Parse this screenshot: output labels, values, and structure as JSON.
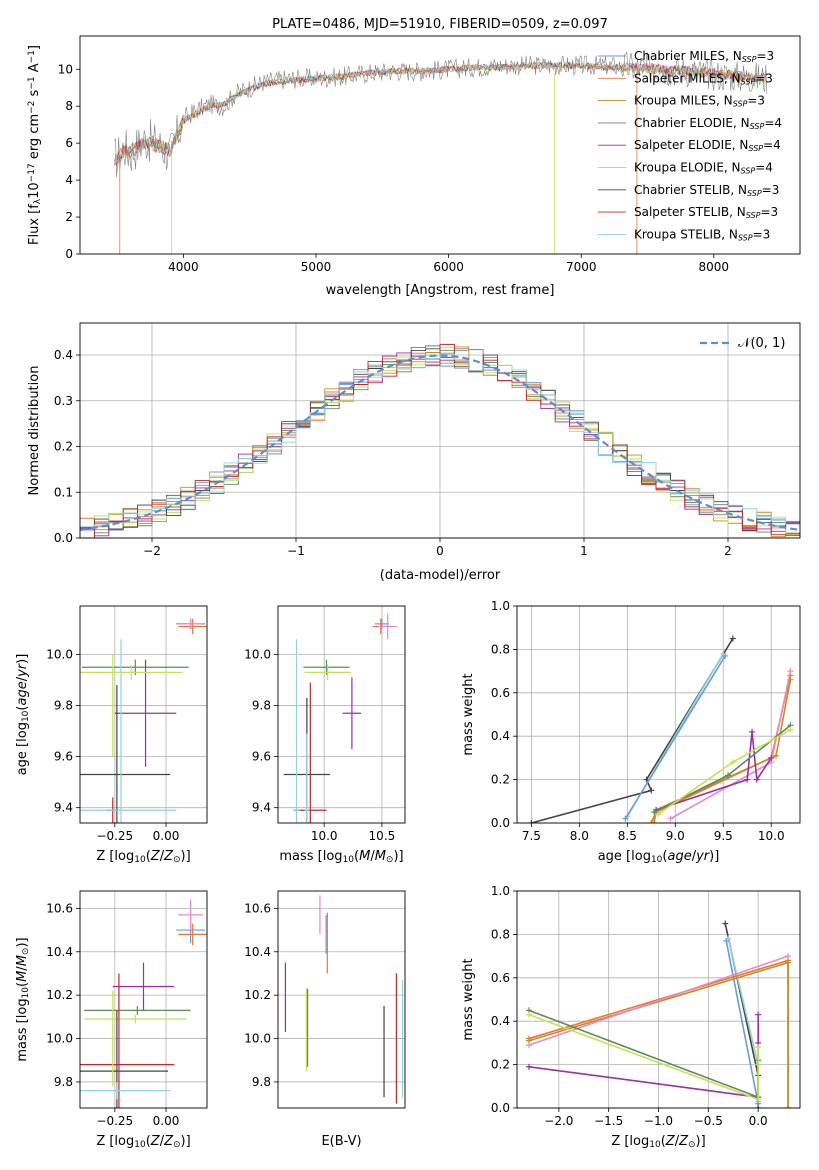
{
  "chart_data": [
    {
      "id": "spectrum",
      "type": "line",
      "title": "PLATE=0486, MJD=51910, FIBERID=0509, z=0.097",
      "xlabel": "wavelength [Angstrom, rest frame]",
      "ylabel": "Flux [f_λ 10^-17 erg cm^-2 s^-1 A^-1]",
      "xlim": [
        3220,
        8650
      ],
      "ylim": [
        0,
        11.8
      ],
      "xticks": [
        4000,
        5000,
        6000,
        7000,
        8000
      ],
      "yticks": [
        0,
        2,
        4,
        6,
        8,
        10
      ],
      "grid": false,
      "legend_position": "top-right",
      "data_color": "#808080",
      "x": [
        3500,
        3550,
        3600,
        3700,
        3800,
        3900,
        4000,
        4100,
        4200,
        4300,
        4400,
        4600,
        4800,
        5000,
        5200,
        5400,
        5600,
        5800,
        6000,
        6200,
        6400,
        6600,
        6800,
        7000,
        7200,
        7400,
        7600,
        7800,
        8000,
        8200,
        8400
      ],
      "data_flux": [
        5.2,
        5.8,
        5.4,
        6.2,
        6.0,
        5.4,
        7.3,
        7.8,
        8.1,
        8.0,
        8.7,
        9.3,
        9.5,
        9.5,
        9.6,
        9.8,
        9.9,
        9.9,
        10.0,
        10.1,
        10.2,
        10.2,
        10.2,
        10.2,
        10.2,
        10.1,
        10.0,
        9.9,
        9.7,
        9.6,
        9.5
      ],
      "model_flux": [
        5.1,
        5.6,
        5.5,
        6.0,
        5.9,
        5.6,
        7.2,
        7.6,
        8.0,
        8.1,
        8.6,
        9.2,
        9.4,
        9.5,
        9.6,
        9.8,
        9.9,
        9.9,
        10.0,
        10.1,
        10.1,
        10.2,
        10.2,
        10.2,
        10.1,
        10.1,
        10.0,
        9.9,
        9.8,
        9.6,
        9.5
      ],
      "series": [
        {
          "label": "Chabrier MILES, N",
          "sub": "SSP",
          "eq": "=3",
          "color": "#6b9bd6"
        },
        {
          "label": "Salpeter MILES, N",
          "sub": "SSP",
          "eq": "=3",
          "color": "#e8773c"
        },
        {
          "label": "Kroupa MILES, N",
          "sub": "SSP",
          "eq": "=3",
          "color": "#c68c1e"
        },
        {
          "label": "Chabrier ELODIE, N",
          "sub": "SSP",
          "eq": "=4",
          "color": "#5c8c5c"
        },
        {
          "label": "Salpeter ELODIE, N",
          "sub": "SSP",
          "eq": "=4",
          "color": "#9c2fa8"
        },
        {
          "label": "Kroupa ELODIE, N",
          "sub": "SSP",
          "eq": "=4",
          "color": "#c8df56"
        },
        {
          "label": "Chabrier STELIB, N",
          "sub": "SSP",
          "eq": "=3",
          "color": "#444444"
        },
        {
          "label": "Salpeter STELIB, N",
          "sub": "SSP",
          "eq": "=3",
          "color": "#c0282a"
        },
        {
          "label": "Kroupa STELIB, N",
          "sub": "SSP",
          "eq": "=3",
          "color": "#8fd4dc"
        }
      ]
    },
    {
      "id": "residual_hist",
      "type": "line",
      "xlabel": "(data-model)/error",
      "ylabel": "Normed distribution",
      "xlim": [
        -2.5,
        2.5
      ],
      "ylim": [
        0,
        0.47
      ],
      "xticks": [
        -2,
        -1,
        0,
        1,
        2
      ],
      "yticks": [
        0.0,
        0.1,
        0.2,
        0.3,
        0.4
      ],
      "grid": true,
      "legend_position": "top-right",
      "legend_label": "𝒩(0, 1)",
      "gaussian": {
        "mean": 0,
        "sigma": 1
      }
    },
    {
      "id": "age_vs_Z",
      "type": "scatter",
      "xlabel": "Z [log10(Z/Z⊙)]",
      "ylabel": "age [log10(age/yr)]",
      "xlim": [
        -0.42,
        0.2
      ],
      "ylim": [
        9.34,
        10.19
      ],
      "xticks": [
        -0.25,
        0.0
      ],
      "yticks": [
        9.4,
        9.6,
        9.8,
        10.0
      ],
      "grid": true,
      "points": [
        {
          "x": 0.12,
          "y": 10.12,
          "xerr": 0.07,
          "yerr": 0.02,
          "color": "#6b9bd6"
        },
        {
          "x": 0.13,
          "y": 10.11,
          "xerr": 0.07,
          "yerr": 0.03,
          "color": "#e8773c"
        },
        {
          "x": 0.12,
          "y": 10.12,
          "xerr": 0.06,
          "yerr": 0.02,
          "color": "#ea88c6"
        },
        {
          "x": -0.15,
          "y": 9.95,
          "xerr": 0.26,
          "yerr": 0.03,
          "color": "#5c8c5c"
        },
        {
          "x": -0.1,
          "y": 9.77,
          "xerr": 0.15,
          "yerr": 0.21,
          "color": "#9c2fa8"
        },
        {
          "x": -0.17,
          "y": 9.93,
          "xerr": 0.25,
          "yerr": 0.03,
          "color": "#c8df56"
        },
        {
          "x": -0.24,
          "y": 9.53,
          "xerr": 0.26,
          "yerr": 0.35,
          "color": "#444444"
        },
        {
          "x": -0.26,
          "y": 9.39,
          "xerr": 0.03,
          "yerr": 0.05,
          "color": "#c0282a"
        },
        {
          "x": -0.22,
          "y": 9.39,
          "xerr": 0.27,
          "yerr": 0.67,
          "color": "#8fd4dc"
        },
        {
          "x": -0.26,
          "y": 9.8,
          "xerr": 0.01,
          "yerr": 0.2,
          "color": "#c8df56"
        }
      ]
    },
    {
      "id": "age_vs_mass",
      "type": "scatter",
      "xlabel": "mass [log10(M/M⊙)]",
      "xlim": [
        9.6,
        10.7
      ],
      "ylim": [
        9.34,
        10.19
      ],
      "xticks": [
        10.0,
        10.5
      ],
      "yticks": [
        9.4,
        9.6,
        9.8,
        10.0
      ],
      "grid": true,
      "points": [
        {
          "x": 10.5,
          "y": 10.12,
          "xerr": 0.06,
          "yerr": 0.02,
          "color": "#6b9bd6"
        },
        {
          "x": 10.49,
          "y": 10.11,
          "xerr": 0.07,
          "yerr": 0.03,
          "color": "#e8773c"
        },
        {
          "x": 10.55,
          "y": 10.11,
          "xerr": 0.08,
          "yerr": 0.05,
          "color": "#ea88c6"
        },
        {
          "x": 10.02,
          "y": 9.95,
          "xerr": 0.2,
          "yerr": 0.03,
          "color": "#5c8c5c"
        },
        {
          "x": 10.24,
          "y": 9.77,
          "xerr": 0.08,
          "yerr": 0.14,
          "color": "#9c2fa8"
        },
        {
          "x": 10.03,
          "y": 9.93,
          "xerr": 0.2,
          "yerr": 0.03,
          "color": "#c8df56"
        },
        {
          "x": 9.85,
          "y": 9.53,
          "xerr": 0.2,
          "yerr": 0.3,
          "color": "#444444"
        },
        {
          "x": 9.88,
          "y": 9.39,
          "xerr": 0.14,
          "yerr": 0.5,
          "color": "#c0282a"
        },
        {
          "x": 9.76,
          "y": 9.39,
          "xerr": 0.03,
          "yerr": 0.67,
          "color": "#8fd4dc"
        },
        {
          "x": 9.85,
          "y": 9.39,
          "xerr": 0.02,
          "yerr": 0.3,
          "color": "#8fd4dc"
        }
      ]
    },
    {
      "id": "mass_weight_vs_age",
      "type": "line",
      "xlabel": "age [log10(age/yr)]",
      "ylabel": "mass weight",
      "xlim": [
        7.35,
        10.3
      ],
      "ylim": [
        0,
        1.0
      ],
      "xticks": [
        7.5,
        8.0,
        8.5,
        9.0,
        9.5,
        10.0
      ],
      "yticks": [
        0.0,
        0.2,
        0.4,
        0.6,
        0.8,
        1.0
      ],
      "grid": true,
      "series": [
        {
          "color": "#444444",
          "x": [
            7.5,
            8.75,
            8.7,
            9.6
          ],
          "y": [
            0.0,
            0.15,
            0.2,
            0.85
          ]
        },
        {
          "color": "#8fd4dc",
          "x": [
            8.5,
            9.5
          ],
          "y": [
            0.03,
            0.78
          ]
        },
        {
          "color": "#6b9bd6",
          "x": [
            8.48,
            9.52
          ],
          "y": [
            0.02,
            0.77
          ]
        },
        {
          "color": "#e8773c",
          "x": [
            8.75,
            8.8,
            10.0,
            10.2
          ],
          "y": [
            0.0,
            0.05,
            0.3,
            0.68
          ]
        },
        {
          "color": "#c68c1e",
          "x": [
            8.78,
            8.8,
            10.05,
            10.2
          ],
          "y": [
            0.0,
            0.06,
            0.31,
            0.66
          ]
        },
        {
          "color": "#ea88c6",
          "x": [
            8.95,
            10.0,
            10.2
          ],
          "y": [
            0.02,
            0.28,
            0.7
          ]
        },
        {
          "color": "#9c2fa8",
          "x": [
            8.8,
            9.75,
            9.8,
            9.85,
            10.0
          ],
          "y": [
            0.06,
            0.2,
            0.42,
            0.2,
            0.3
          ]
        },
        {
          "color": "#5c8c5c",
          "x": [
            8.78,
            9.55,
            10.2
          ],
          "y": [
            0.05,
            0.22,
            0.45
          ]
        },
        {
          "color": "#c8df56",
          "x": [
            8.82,
            9.6,
            10.2
          ],
          "y": [
            0.04,
            0.28,
            0.43
          ]
        }
      ]
    },
    {
      "id": "mass_vs_Z",
      "type": "scatter",
      "xlabel": "Z [log10(Z/Z⊙)]",
      "ylabel": "mass [log10(M/M⊙)]",
      "xlim": [
        -0.42,
        0.2
      ],
      "ylim": [
        9.68,
        10.68
      ],
      "xticks": [
        -0.25,
        0.0
      ],
      "yticks": [
        9.8,
        10.0,
        10.2,
        10.4,
        10.6
      ],
      "grid": true,
      "points": [
        {
          "x": 0.12,
          "y": 10.5,
          "xerr": 0.07,
          "yerr": 0.06,
          "color": "#6b9bd6"
        },
        {
          "x": 0.13,
          "y": 10.48,
          "xerr": 0.07,
          "yerr": 0.05,
          "color": "#e8773c"
        },
        {
          "x": 0.12,
          "y": 10.57,
          "xerr": 0.06,
          "yerr": 0.07,
          "color": "#ea88c6"
        },
        {
          "x": -0.14,
          "y": 10.13,
          "xerr": 0.26,
          "yerr": 0.02,
          "color": "#5c8c5c"
        },
        {
          "x": -0.11,
          "y": 10.24,
          "xerr": 0.15,
          "yerr": 0.11,
          "color": "#9c2fa8"
        },
        {
          "x": -0.15,
          "y": 10.09,
          "xerr": 0.25,
          "yerr": 0.02,
          "color": "#c8df56"
        },
        {
          "x": -0.24,
          "y": 9.85,
          "xerr": 0.25,
          "yerr": 0.28,
          "color": "#444444"
        },
        {
          "x": -0.23,
          "y": 9.88,
          "xerr": 0.27,
          "yerr": 0.42,
          "color": "#c0282a"
        },
        {
          "x": -0.24,
          "y": 9.76,
          "xerr": 0.26,
          "yerr": 0.04,
          "color": "#8fd4dc"
        },
        {
          "x": -0.26,
          "y": 10.0,
          "xerr": 0.01,
          "yerr": 0.22,
          "color": "#c8df56"
        }
      ]
    },
    {
      "id": "mass_vs_EBV",
      "type": "scatter",
      "xlabel": "E(B-V)",
      "xlim": [
        0.017,
        0.12
      ],
      "ylim": [
        9.68,
        10.68
      ],
      "xticks": [],
      "yticks": [
        9.8,
        10.0,
        10.2,
        10.4,
        10.6
      ],
      "grid": true,
      "points": [
        {
          "x": 0.023,
          "y": 10.19,
          "xerr": 0,
          "yerr": 0.16,
          "color": "#9c2fa8"
        },
        {
          "x": 0.04,
          "y": 10.04,
          "xerr": 0,
          "yerr": 0.19,
          "color": "#c8df56"
        },
        {
          "x": 0.041,
          "y": 10.05,
          "xerr": 0,
          "yerr": 0.18,
          "color": "#5c8c5c"
        },
        {
          "x": 0.051,
          "y": 10.57,
          "xerr": 0,
          "yerr": 0.09,
          "color": "#ea88c6"
        },
        {
          "x": 0.056,
          "y": 10.48,
          "xerr": 0,
          "yerr": 0.09,
          "color": "#6b9bd6"
        },
        {
          "x": 0.057,
          "y": 10.44,
          "xerr": 0,
          "yerr": 0.14,
          "color": "#e8773c"
        },
        {
          "x": 0.103,
          "y": 9.94,
          "xerr": 0,
          "yerr": 0.21,
          "color": "#444444"
        },
        {
          "x": 0.113,
          "y": 10.0,
          "xerr": 0,
          "yerr": 0.3,
          "color": "#c0282a"
        },
        {
          "x": 0.118,
          "y": 10.0,
          "xerr": 0,
          "yerr": 0.27,
          "color": "#8fd4dc"
        }
      ]
    },
    {
      "id": "mass_weight_vs_Z",
      "type": "line",
      "xlabel": "Z [log10(Z/Z⊙)]",
      "ylabel": "mass weight",
      "xlim": [
        -2.42,
        0.42
      ],
      "ylim": [
        0,
        1.0
      ],
      "xticks": [
        -2.0,
        -1.5,
        -1.0,
        -0.5,
        0.0
      ],
      "yticks": [
        0.0,
        0.2,
        0.4,
        0.6,
        0.8,
        1.0
      ],
      "grid": true,
      "series": [
        {
          "color": "#444444",
          "x": [
            -0.33,
            0.0,
            0.0
          ],
          "y": [
            0.85,
            0.15,
            0.0
          ]
        },
        {
          "color": "#8fd4dc",
          "x": [
            -0.3,
            0.0,
            0.0
          ],
          "y": [
            0.78,
            0.2,
            0.03
          ]
        },
        {
          "color": "#6b9bd6",
          "x": [
            -0.32,
            0.0
          ],
          "y": [
            0.77,
            0.02
          ]
        },
        {
          "color": "#e8773c",
          "x": [
            -2.3,
            0.3,
            0.3
          ],
          "y": [
            0.32,
            0.68,
            0.0
          ]
        },
        {
          "color": "#c68c1e",
          "x": [
            -2.3,
            0.3,
            0.3
          ],
          "y": [
            0.31,
            0.67,
            0.0
          ]
        },
        {
          "color": "#ea88c6",
          "x": [
            -2.3,
            0.3
          ],
          "y": [
            0.29,
            0.7
          ]
        },
        {
          "color": "#9c2fa8",
          "x": [
            -2.3,
            0.0,
            0.0,
            0.0
          ],
          "y": [
            0.19,
            0.05,
            0.43,
            0.3
          ]
        },
        {
          "color": "#5c8c5c",
          "x": [
            -2.3,
            0.0,
            0.0
          ],
          "y": [
            0.45,
            0.05,
            0.22
          ]
        },
        {
          "color": "#c8df56",
          "x": [
            -2.3,
            0.0,
            0.0
          ],
          "y": [
            0.43,
            0.04,
            0.28
          ]
        }
      ]
    }
  ]
}
